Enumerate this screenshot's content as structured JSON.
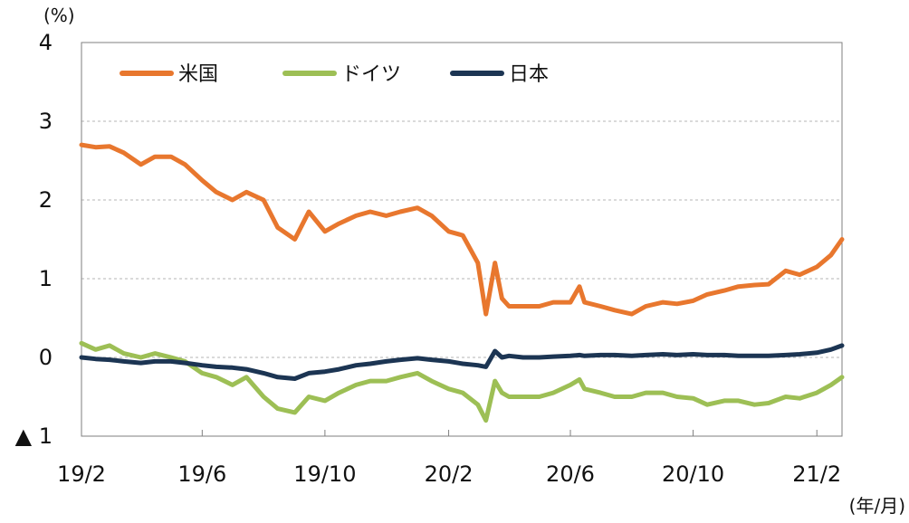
{
  "chart_data": {
    "type": "line",
    "y_unit": "(%)",
    "x_unit": "(年/月)",
    "ylim": [
      -1,
      4
    ],
    "y_ticks": [
      {
        "value": 4,
        "label": "4"
      },
      {
        "value": 3,
        "label": "3"
      },
      {
        "value": 2,
        "label": "2"
      },
      {
        "value": 1,
        "label": "1"
      },
      {
        "value": 0,
        "label": "0"
      },
      {
        "value": -1,
        "label": "▲ 1"
      }
    ],
    "grid": true,
    "legend": "top-left",
    "x_ticks": [
      {
        "x": "2019-02",
        "label": "19/2"
      },
      {
        "x": "2019-06",
        "label": "19/6"
      },
      {
        "x": "2019-10",
        "label": "19/10"
      },
      {
        "x": "2020-02",
        "label": "20/2"
      },
      {
        "x": "2020-06",
        "label": "20/6"
      },
      {
        "x": "2020-10",
        "label": "20/10"
      },
      {
        "x": "2021-02",
        "label": "21/2"
      }
    ],
    "x": [
      "2019-02-01",
      "2019-02-15",
      "2019-03-01",
      "2019-03-15",
      "2019-04-01",
      "2019-04-15",
      "2019-05-01",
      "2019-05-15",
      "2019-06-01",
      "2019-06-15",
      "2019-07-01",
      "2019-07-15",
      "2019-08-01",
      "2019-08-15",
      "2019-09-01",
      "2019-09-15",
      "2019-10-01",
      "2019-10-15",
      "2019-11-01",
      "2019-11-15",
      "2019-12-01",
      "2019-12-15",
      "2020-01-01",
      "2020-01-15",
      "2020-02-01",
      "2020-02-15",
      "2020-03-01",
      "2020-03-09",
      "2020-03-18",
      "2020-03-25",
      "2020-04-01",
      "2020-04-15",
      "2020-05-01",
      "2020-05-15",
      "2020-06-01",
      "2020-06-10",
      "2020-06-15",
      "2020-07-01",
      "2020-07-15",
      "2020-08-01",
      "2020-08-15",
      "2020-09-01",
      "2020-09-15",
      "2020-10-01",
      "2020-10-15",
      "2020-11-01",
      "2020-11-15",
      "2020-12-01",
      "2020-12-15",
      "2021-01-01",
      "2021-01-15",
      "2021-02-01",
      "2021-02-15",
      "2021-02-26"
    ],
    "series": [
      {
        "name": "米国",
        "color": "#E8772E",
        "values": [
          2.7,
          2.67,
          2.68,
          2.6,
          2.45,
          2.55,
          2.55,
          2.45,
          2.25,
          2.1,
          2.0,
          2.1,
          2.0,
          1.65,
          1.5,
          1.85,
          1.6,
          1.7,
          1.8,
          1.85,
          1.8,
          1.85,
          1.9,
          1.8,
          1.6,
          1.55,
          1.2,
          0.55,
          1.2,
          0.75,
          0.65,
          0.65,
          0.65,
          0.7,
          0.7,
          0.9,
          0.7,
          0.65,
          0.6,
          0.55,
          0.65,
          0.7,
          0.68,
          0.72,
          0.8,
          0.85,
          0.9,
          0.92,
          0.93,
          1.1,
          1.05,
          1.15,
          1.3,
          1.5
        ]
      },
      {
        "name": "ドイツ",
        "color": "#9DBF55",
        "values": [
          0.18,
          0.1,
          0.15,
          0.05,
          0.0,
          0.05,
          0.0,
          -0.05,
          -0.2,
          -0.25,
          -0.35,
          -0.25,
          -0.5,
          -0.65,
          -0.7,
          -0.5,
          -0.55,
          -0.45,
          -0.35,
          -0.3,
          -0.3,
          -0.25,
          -0.2,
          -0.3,
          -0.4,
          -0.45,
          -0.6,
          -0.8,
          -0.3,
          -0.45,
          -0.5,
          -0.5,
          -0.5,
          -0.45,
          -0.35,
          -0.28,
          -0.4,
          -0.45,
          -0.5,
          -0.5,
          -0.45,
          -0.45,
          -0.5,
          -0.52,
          -0.6,
          -0.55,
          -0.55,
          -0.6,
          -0.58,
          -0.5,
          -0.52,
          -0.45,
          -0.35,
          -0.25
        ]
      },
      {
        "name": "日本",
        "color": "#1C3553",
        "values": [
          0.0,
          -0.02,
          -0.03,
          -0.05,
          -0.07,
          -0.05,
          -0.05,
          -0.07,
          -0.1,
          -0.12,
          -0.13,
          -0.15,
          -0.2,
          -0.25,
          -0.27,
          -0.2,
          -0.18,
          -0.15,
          -0.1,
          -0.08,
          -0.05,
          -0.03,
          -0.01,
          -0.03,
          -0.05,
          -0.08,
          -0.1,
          -0.12,
          0.08,
          0.0,
          0.02,
          0.0,
          0.0,
          0.01,
          0.02,
          0.03,
          0.02,
          0.03,
          0.03,
          0.02,
          0.03,
          0.04,
          0.03,
          0.04,
          0.03,
          0.03,
          0.02,
          0.02,
          0.02,
          0.03,
          0.04,
          0.06,
          0.1,
          0.15
        ]
      }
    ]
  }
}
